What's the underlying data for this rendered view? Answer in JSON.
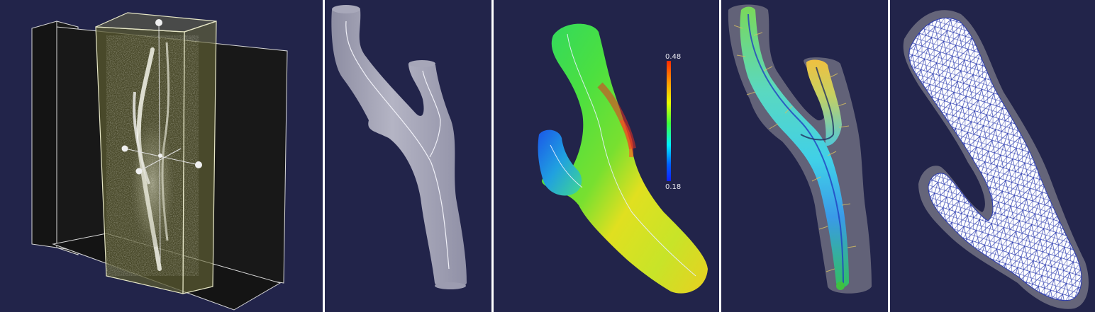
{
  "panels": [
    {
      "name": "volume-slices-view"
    },
    {
      "name": "vessel-surface-centerline-view"
    },
    {
      "name": "vessel-radius-colormap-view"
    },
    {
      "name": "vessel-normals-glyph-view"
    },
    {
      "name": "vessel-tetra-mesh-view"
    }
  ],
  "colorbar": {
    "max_label": "0.48",
    "min_label": "0.18",
    "colors": [
      "#ff2a00",
      "#ff9a00",
      "#e8ff00",
      "#3cff3c",
      "#00f0ff",
      "#0060ff",
      "#1020ff"
    ]
  },
  "colors": {
    "background": "#22244a",
    "surface_gray": "#a6a6b8",
    "mesh_line": "#2b3bb0"
  }
}
